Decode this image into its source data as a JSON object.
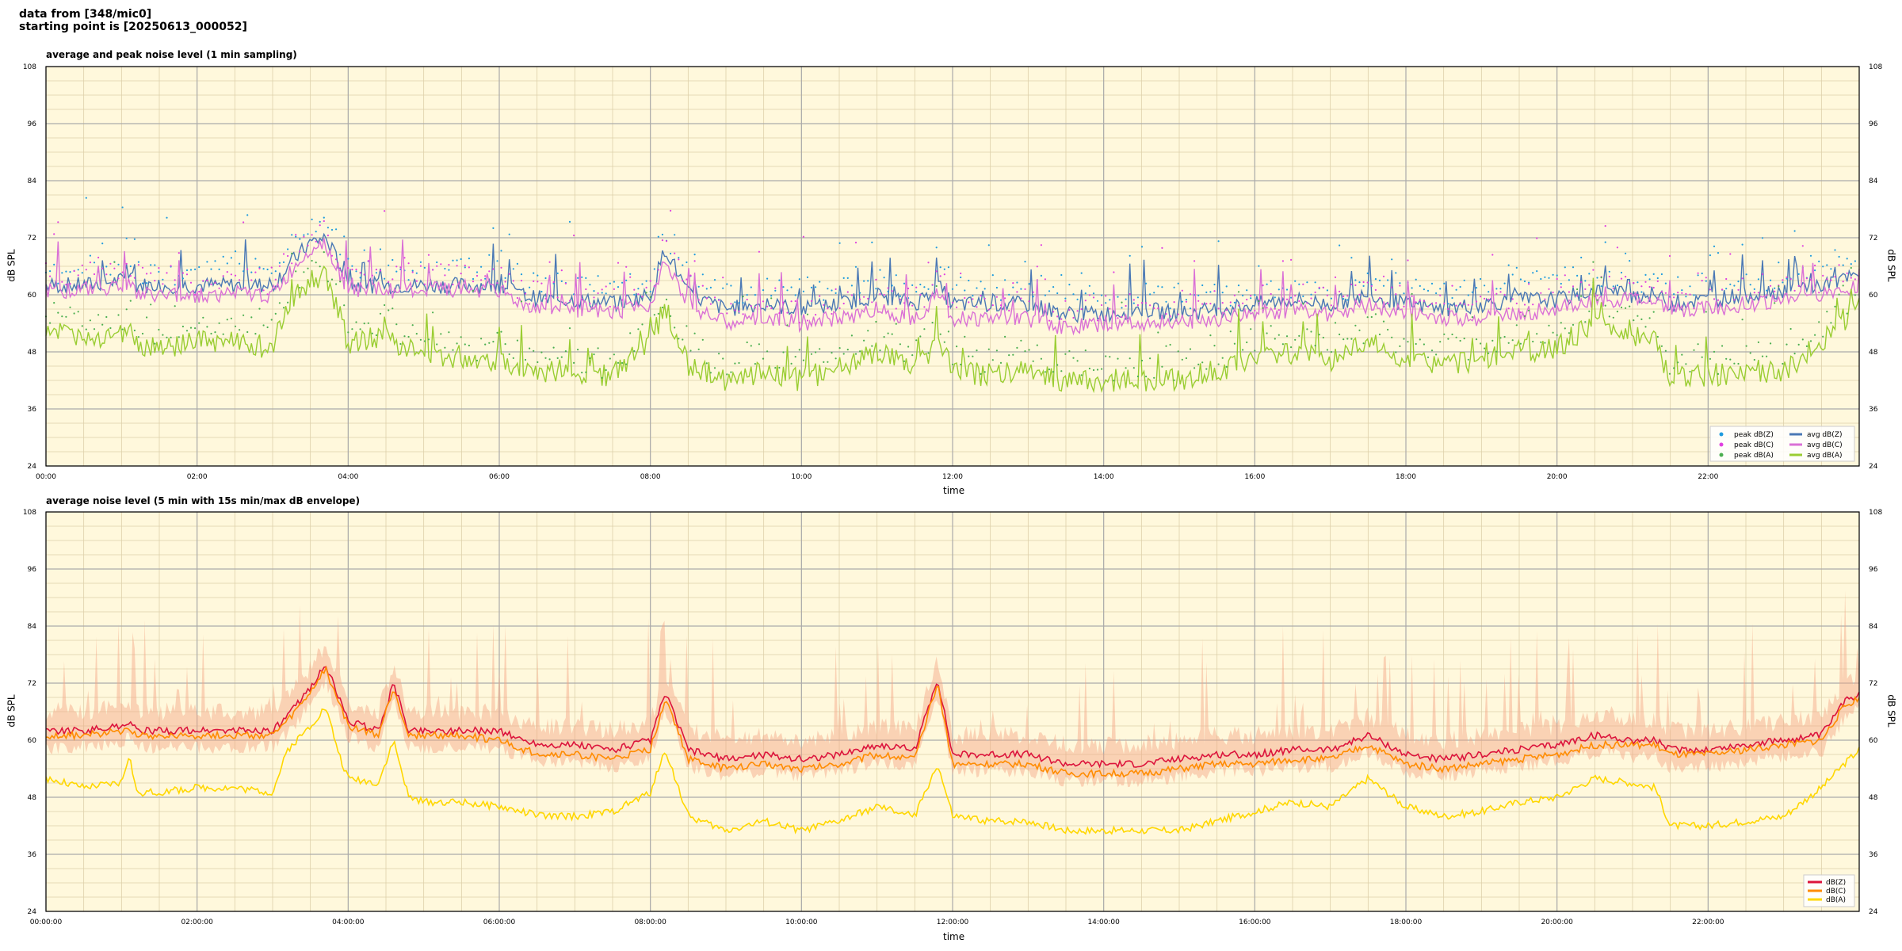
{
  "header": {
    "line1": "data from [348/mic0]",
    "line2": "starting point is [20250613_000052]"
  },
  "colors": {
    "panel_bg": "#fff8dc",
    "grid_major": "#aaaaaa",
    "grid_minor": "#ddd0aa",
    "peak_z": "#1f9bde",
    "peak_c": "#e040e0",
    "peak_a": "#4caf50",
    "avg_z": "#4a78b5",
    "avg_c": "#da70d6",
    "avg_a": "#9acd32",
    "env_red": "#dc143c",
    "env_orange": "#ff8c00",
    "env_yellow": "#ffd700",
    "env_fill": "#f4a582"
  },
  "chart_data": [
    {
      "type": "line",
      "title": "average and peak noise level (1 min sampling)",
      "xlabel": "time",
      "ylabel": "dB SPL",
      "ylim": [
        24,
        108
      ],
      "yticks": [
        24,
        36,
        48,
        60,
        72,
        84,
        96,
        108
      ],
      "xlim_hours": [
        0,
        24
      ],
      "xtick_labels": [
        "00:00",
        "02:00",
        "04:00",
        "06:00",
        "08:00",
        "10:00",
        "12:00",
        "14:00",
        "16:00",
        "18:00",
        "20:00",
        "22:00"
      ],
      "grid": true,
      "legend_position": "bottom-right",
      "legend": [
        "peak dB(Z)",
        "peak dB(C)",
        "peak dB(A)",
        "avg dB(Z)",
        "avg dB(C)",
        "avg dB(A)"
      ],
      "series": [
        {
          "name": "avg dB(Z)",
          "kind": "line",
          "x_hours": [
            0,
            0.5,
            1,
            1.1,
            1.2,
            1.5,
            2,
            2.5,
            3,
            3.2,
            3.5,
            3.7,
            3.9,
            4,
            4.5,
            5,
            5.5,
            6,
            6.3,
            6.6,
            7,
            7.5,
            8,
            8.2,
            8.5,
            9,
            9.5,
            10,
            10.5,
            11,
            11.5,
            11.8,
            12,
            12.5,
            13,
            13.5,
            14,
            14.5,
            15,
            15.5,
            16,
            16.5,
            17,
            17.5,
            18,
            18.5,
            19,
            19.5,
            20,
            20.5,
            21,
            21.3,
            21.5,
            22,
            22.5,
            23,
            23.5,
            24
          ],
          "values": [
            62,
            62,
            63,
            64,
            62,
            62,
            62,
            62,
            62,
            66,
            71,
            72,
            66,
            62,
            62,
            62,
            62,
            62,
            60,
            59,
            59,
            58,
            60,
            70,
            60,
            57,
            58,
            57,
            58,
            60,
            58,
            62,
            58,
            58,
            58,
            56,
            56,
            57,
            56,
            57,
            58,
            59,
            58,
            60,
            58,
            57,
            58,
            59,
            59,
            61,
            60,
            60,
            58,
            59,
            60,
            61,
            62,
            64
          ]
        },
        {
          "name": "avg dB(C)",
          "kind": "line",
          "x_hours": [
            0,
            0.5,
            1,
            1.1,
            1.2,
            1.5,
            2,
            2.5,
            3,
            3.2,
            3.5,
            3.7,
            3.9,
            4,
            4.5,
            5,
            5.5,
            6,
            6.3,
            6.6,
            7,
            7.5,
            8,
            8.2,
            8.5,
            9,
            9.5,
            10,
            10.5,
            11,
            11.5,
            11.8,
            12,
            12.5,
            13,
            13.5,
            14,
            14.5,
            15,
            15.5,
            16,
            16.5,
            17,
            17.5,
            18,
            18.5,
            19,
            19.5,
            20,
            20.5,
            21,
            21.3,
            21.5,
            22,
            22.5,
            23,
            23.5,
            24
          ],
          "values": [
            61,
            61,
            62,
            63,
            60,
            60,
            60,
            60,
            60,
            64,
            70,
            71,
            64,
            61,
            61,
            61,
            61,
            61,
            58,
            57,
            57,
            56,
            58,
            68,
            58,
            54,
            55,
            54,
            55,
            57,
            55,
            60,
            55,
            55,
            55,
            53,
            54,
            54,
            54,
            55,
            56,
            57,
            56,
            58,
            56,
            55,
            55,
            56,
            57,
            59,
            59,
            59,
            57,
            57,
            58,
            59,
            60,
            62
          ]
        },
        {
          "name": "avg dB(A)",
          "kind": "line",
          "x_hours": [
            0,
            0.5,
            1,
            1.1,
            1.2,
            1.5,
            2,
            2.5,
            3,
            3.2,
            3.5,
            3.7,
            3.9,
            4,
            4.5,
            5,
            5.5,
            6,
            6.3,
            6.6,
            7,
            7.5,
            8,
            8.2,
            8.5,
            9,
            9.5,
            10,
            10.5,
            11,
            11.5,
            11.8,
            12,
            12.5,
            13,
            13.5,
            14,
            14.5,
            15,
            15.5,
            16,
            16.5,
            17,
            17.5,
            18,
            18.5,
            19,
            19.5,
            20,
            20.5,
            21,
            21.3,
            21.5,
            22,
            22.5,
            23,
            23.5,
            24
          ],
          "values": [
            53,
            50,
            52,
            55,
            49,
            49,
            50,
            50,
            49,
            58,
            63,
            64,
            55,
            50,
            51,
            47,
            47,
            46,
            45,
            44,
            44,
            43,
            50,
            58,
            45,
            42,
            44,
            42,
            45,
            48,
            44,
            50,
            44,
            43,
            44,
            42,
            42,
            42,
            42,
            44,
            46,
            48,
            46,
            50,
            46,
            45,
            46,
            48,
            49,
            54,
            51,
            50,
            43,
            43,
            44,
            44,
            50,
            58
          ]
        }
      ]
    },
    {
      "type": "line",
      "title": "average noise level (5 min with 15s min/max dB envelope)",
      "xlabel": "time",
      "ylabel": "dB SPL",
      "ylim": [
        24,
        108
      ],
      "yticks": [
        24,
        36,
        48,
        60,
        72,
        84,
        96,
        108
      ],
      "xlim_hours": [
        0,
        24
      ],
      "xtick_labels": [
        "00:00:00",
        "02:00:00",
        "04:00:00",
        "06:00:00",
        "08:00:00",
        "10:00:00",
        "12:00:00",
        "14:00:00",
        "16:00:00",
        "18:00:00",
        "20:00:00",
        "22:00:00"
      ],
      "grid": true,
      "legend_position": "bottom-right",
      "legend": [
        "dB(Z)",
        "dB(C)",
        "dB(A)"
      ],
      "series": [
        {
          "name": "dB(Z)",
          "kind": "line",
          "x_hours": [
            0,
            0.5,
            1,
            1.1,
            1.2,
            1.5,
            2,
            2.5,
            3,
            3.2,
            3.5,
            3.7,
            3.9,
            4,
            4.4,
            4.6,
            4.8,
            5,
            5.5,
            6,
            6.3,
            6.6,
            7,
            7.5,
            8,
            8.2,
            8.5,
            9,
            9.5,
            10,
            10.5,
            11,
            11.5,
            11.8,
            12,
            12.5,
            13,
            13.5,
            14,
            14.5,
            15,
            15.5,
            16,
            16.5,
            17,
            17.5,
            18,
            18.5,
            19,
            19.5,
            20,
            20.5,
            21,
            21.3,
            21.5,
            22,
            22.5,
            23,
            23.5,
            23.8,
            24
          ],
          "values": [
            62,
            62,
            63,
            64,
            62,
            62,
            62,
            62,
            62,
            65,
            71,
            76,
            68,
            64,
            62,
            72,
            62,
            62,
            62,
            62,
            60,
            59,
            59,
            58,
            60,
            70,
            58,
            56,
            57,
            56,
            57,
            59,
            58,
            73,
            57,
            57,
            57,
            55,
            55,
            55,
            56,
            57,
            57,
            58,
            58,
            61,
            57,
            56,
            57,
            58,
            59,
            61,
            60,
            60,
            58,
            58,
            59,
            60,
            61,
            68,
            70
          ]
        },
        {
          "name": "dB(C)",
          "kind": "line",
          "x_hours": [
            0,
            0.5,
            1,
            1.1,
            1.2,
            1.5,
            2,
            2.5,
            3,
            3.2,
            3.5,
            3.7,
            3.9,
            4,
            4.4,
            4.6,
            4.8,
            5,
            5.5,
            6,
            6.3,
            6.6,
            7,
            7.5,
            8,
            8.2,
            8.5,
            9,
            9.5,
            10,
            10.5,
            11,
            11.5,
            11.8,
            12,
            12.5,
            13,
            13.5,
            14,
            14.5,
            15,
            15.5,
            16,
            16.5,
            17,
            17.5,
            18,
            18.5,
            19,
            19.5,
            20,
            20.5,
            21,
            21.3,
            21.5,
            22,
            22.5,
            23,
            23.5,
            23.8,
            24
          ],
          "values": [
            61,
            61,
            62,
            63,
            61,
            61,
            61,
            61,
            61,
            64,
            70,
            75,
            67,
            63,
            61,
            71,
            61,
            61,
            61,
            60,
            58,
            57,
            57,
            56,
            58,
            69,
            56,
            54,
            55,
            54,
            55,
            57,
            56,
            72,
            55,
            55,
            55,
            53,
            53,
            53,
            54,
            55,
            55,
            56,
            56,
            59,
            55,
            54,
            55,
            56,
            57,
            59,
            59,
            59,
            57,
            57,
            58,
            59,
            60,
            67,
            69
          ]
        },
        {
          "name": "dB(A)",
          "kind": "line",
          "x_hours": [
            0,
            0.5,
            1,
            1.1,
            1.2,
            1.5,
            2,
            2.5,
            3,
            3.2,
            3.5,
            3.7,
            3.9,
            4,
            4.4,
            4.6,
            4.8,
            5,
            5.5,
            6,
            6.3,
            6.6,
            7,
            7.5,
            8,
            8.2,
            8.5,
            9,
            9.5,
            10,
            10.5,
            11,
            11.5,
            11.8,
            12,
            12.5,
            13,
            13.5,
            14,
            14.5,
            15,
            15.5,
            16,
            16.5,
            17,
            17.5,
            18,
            18.5,
            19,
            19.5,
            20,
            20.5,
            21,
            21.3,
            21.5,
            22,
            22.5,
            23,
            23.5,
            23.8,
            24
          ],
          "values": [
            52,
            50,
            51,
            57,
            49,
            49,
            50,
            50,
            49,
            58,
            63,
            67,
            56,
            52,
            51,
            60,
            48,
            47,
            47,
            46,
            45,
            44,
            44,
            45,
            49,
            58,
            44,
            41,
            43,
            41,
            43,
            46,
            44,
            55,
            44,
            43,
            43,
            41,
            41,
            41,
            41,
            43,
            45,
            47,
            46,
            52,
            46,
            44,
            45,
            47,
            48,
            52,
            51,
            50,
            42,
            42,
            43,
            44,
            50,
            55,
            58
          ]
        }
      ]
    }
  ]
}
